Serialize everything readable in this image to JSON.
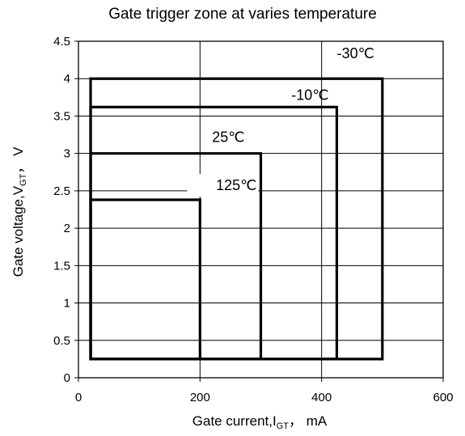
{
  "chart_data": {
    "type": "line",
    "title": "Gate trigger zone at varies temperature",
    "xlabel": {
      "prefix": "Gate current,I",
      "subscript": "GT",
      "suffix": "， mA"
    },
    "ylabel": {
      "prefix": "Gate voltage,V",
      "subscript": "GT",
      "suffix": "， V"
    },
    "xlim": [
      0,
      600
    ],
    "ylim": [
      0,
      4.5
    ],
    "x_ticks": [
      "0",
      "200",
      "400",
      "600"
    ],
    "y_ticks": [
      "0",
      "0.5",
      "1",
      "1.5",
      "2",
      "2.5",
      "3",
      "3.5",
      "4",
      "4.5"
    ],
    "grid": true,
    "series": [
      {
        "name": "-30℃",
        "x_min": 20,
        "x_max": 500,
        "y_min": 0.25,
        "y_max": 4.0
      },
      {
        "name": "-10℃",
        "x_min": 20,
        "x_max": 425,
        "y_min": 0.25,
        "y_max": 3.62
      },
      {
        "name": "25℃",
        "x_min": 20,
        "x_max": 300,
        "y_min": 0.25,
        "y_max": 3.0
      },
      {
        "name": "125℃",
        "x_min": 20,
        "x_max": 200,
        "y_min": 0.25,
        "y_max": 2.38
      }
    ]
  }
}
